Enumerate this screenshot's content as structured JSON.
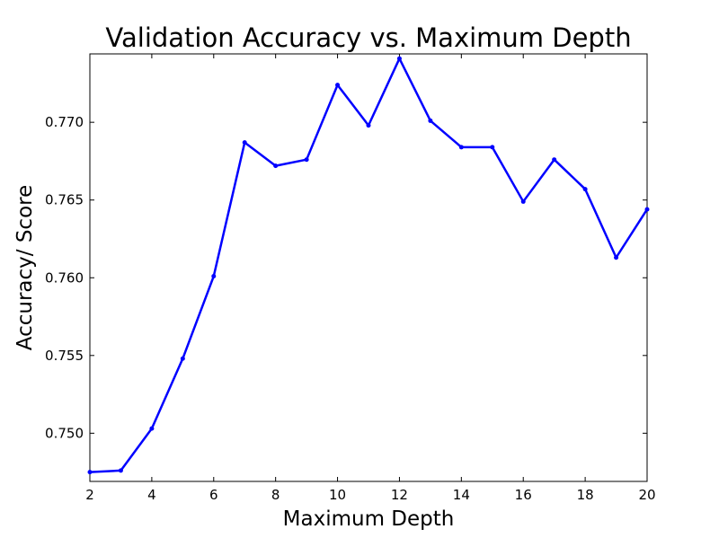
{
  "chart_data": {
    "type": "line",
    "title": "Validation Accuracy vs. Maximum Depth",
    "xlabel": "Maximum Depth",
    "ylabel": "Accuracy/ Score",
    "xlim": [
      2,
      20
    ],
    "ylim": [
      0.7469,
      0.7744
    ],
    "xticks": [
      2,
      4,
      6,
      8,
      10,
      12,
      14,
      16,
      18,
      20
    ],
    "yticks": [
      0.75,
      0.755,
      0.76,
      0.765,
      0.77
    ],
    "ytick_labels": [
      "0.750",
      "0.755",
      "0.760",
      "0.765",
      "0.770"
    ],
    "grid": false,
    "series": [
      {
        "color": "#0000ff",
        "x": [
          2,
          3,
          4,
          5,
          6,
          7,
          8,
          9,
          10,
          11,
          12,
          13,
          14,
          15,
          16,
          17,
          18,
          19,
          20
        ],
        "values": [
          0.7475,
          0.7476,
          0.7503,
          0.7548,
          0.7601,
          0.7687,
          0.7672,
          0.7676,
          0.7724,
          0.7698,
          0.7741,
          0.7701,
          0.7684,
          0.7684,
          0.7649,
          0.7676,
          0.7657,
          0.7613,
          0.7644
        ]
      }
    ]
  }
}
